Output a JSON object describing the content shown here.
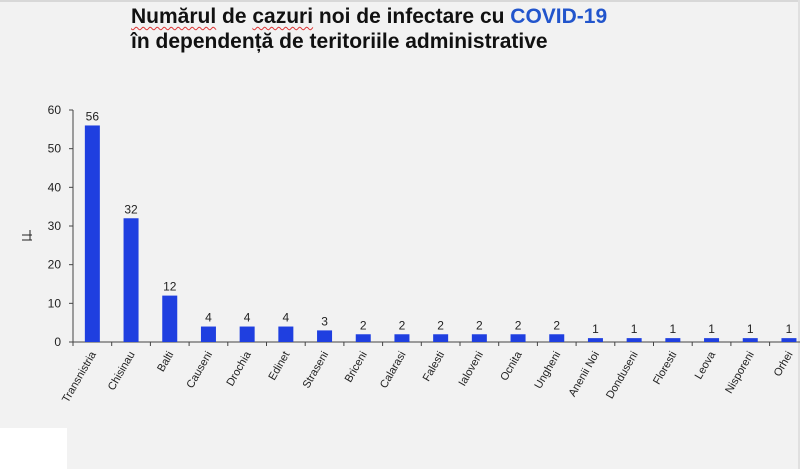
{
  "title": {
    "line1_a": "Numărul",
    "line1_b": " de ",
    "line1_c": "cazuri",
    "line1_d": " noi de infectare cu ",
    "line1_covid": "COVID-19",
    "line2": "în dependență de teritoriile administrative"
  },
  "colors": {
    "bar": "#1f3fe0",
    "covid_text": "#2255cc",
    "axis": "#444444"
  },
  "chart_data": {
    "type": "bar",
    "title": "Numărul de cazuri noi de infectare cu COVID-19 în dependență de teritoriile administrative",
    "xlabel": "",
    "ylabel": "",
    "ylim": [
      0,
      60
    ],
    "yticks": [
      0,
      10,
      20,
      30,
      40,
      50,
      60
    ],
    "grid": false,
    "categories": [
      "Transnistria",
      "Chisinau",
      "Balti",
      "Causeni",
      "Drochia",
      "Edinet",
      "Straseni",
      "Briceni",
      "Calarasi",
      "Falesti",
      "Ialoveni",
      "Ocnita",
      "Ungheni",
      "Anenii Noi",
      "Donduseni",
      "Floresti",
      "Leova",
      "Nisporeni",
      "Orhei"
    ],
    "values": [
      56,
      32,
      12,
      4,
      4,
      4,
      3,
      2,
      2,
      2,
      2,
      2,
      2,
      1,
      1,
      1,
      1,
      1,
      1
    ]
  }
}
